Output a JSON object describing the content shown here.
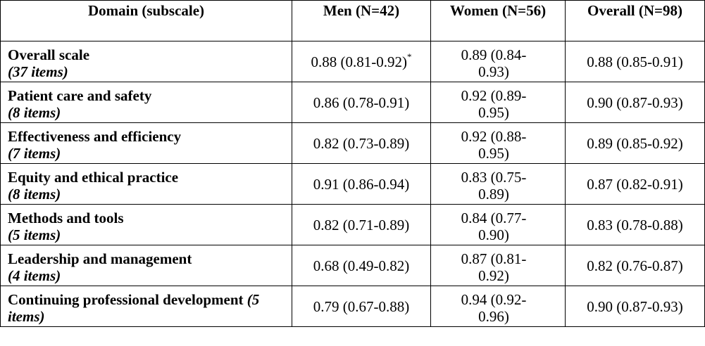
{
  "header": {
    "domain": "Domain (subscale)",
    "men": "Men (N=42)",
    "women": "Women (N=56)",
    "overall": "Overall (N=98)"
  },
  "rows": [
    {
      "name": "Overall scale",
      "items": "(37 items)",
      "men": "0.88 (0.81-0.92)",
      "men_note": "*",
      "women": "0.89 (0.84-0.93)",
      "overall": "0.88 (0.85-0.91)"
    },
    {
      "name": "Patient care and safety",
      "items": "(8 items)",
      "men": "0.86 (0.78-0.91)",
      "women": "0.92 (0.89-0.95)",
      "overall": "0.90 (0.87-0.93)"
    },
    {
      "name": "Effectiveness and efficiency",
      "items": "(7 items)",
      "men": "0.82 (0.73-0.89)",
      "women": "0.92 (0.88-0.95)",
      "overall": "0.89 (0.85-0.92)"
    },
    {
      "name": "Equity and ethical practice",
      "items": "(8 items)",
      "men": "0.91 (0.86-0.94)",
      "women": "0.83 (0.75-0.89)",
      "overall": "0.87 (0.82-0.91)"
    },
    {
      "name": "Methods and tools",
      "items": "(5 items)",
      "men": "0.82 (0.71-0.89)",
      "women": "0.84 (0.77-0.90)",
      "overall": "0.83 (0.78-0.88)"
    },
    {
      "name": "Leadership and management",
      "items": "(4 items)",
      "men": "0.68 (0.49-0.82)",
      "women": "0.87 (0.81-0.92)",
      "overall": "0.82 (0.76-0.87)"
    },
    {
      "name": "Continuing professional development",
      "items": "(5 items)",
      "men": "0.79 (0.67-0.88)",
      "women": "0.94 (0.92-0.96)",
      "overall": "0.90 (0.87-0.93)"
    }
  ]
}
